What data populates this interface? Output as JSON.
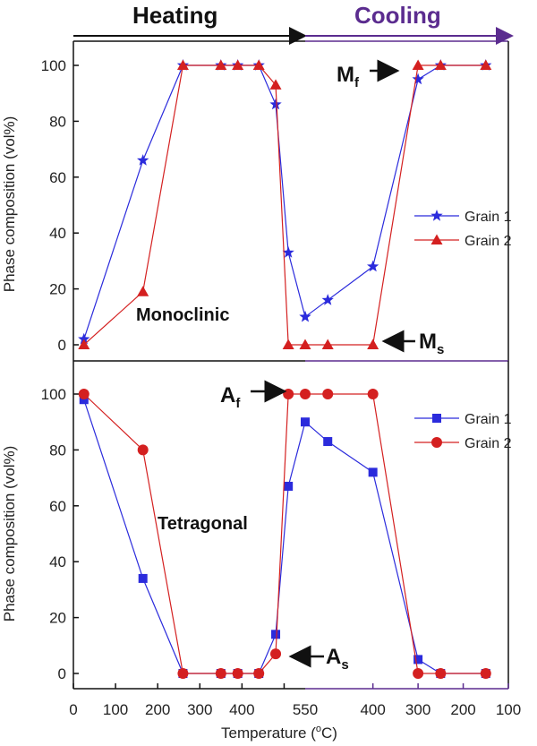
{
  "header": {
    "heating": "Heating",
    "cooling": "Cooling"
  },
  "colors": {
    "heating": "#111111",
    "cooling": "#5b2c8f",
    "grain1": "#2b2bdc",
    "grain2": "#d42020"
  },
  "x_axis": {
    "title_prefix": "Temperature (",
    "title_suffix": "C)",
    "degree": "o",
    "ticks_heating": [
      "0",
      "100",
      "200",
      "300",
      "400",
      "500"
    ],
    "tick_550": "550",
    "ticks_cooling": [
      "400",
      "300",
      "200",
      "100"
    ]
  },
  "chart_data": [
    {
      "type": "line",
      "panel": "top",
      "ylabel": "Phase composition (vol%)",
      "ylim": [
        0,
        100
      ],
      "yticks": [
        "0",
        "20",
        "40",
        "60",
        "80",
        "100"
      ],
      "phase_label": "Monoclinic",
      "x": [
        "25",
        "165",
        "260",
        "350",
        "390",
        "440",
        "480",
        "510",
        "550",
        "500",
        "400",
        "300",
        "250",
        "150"
      ],
      "series": [
        {
          "name": "Grain 1",
          "marker": "star",
          "values": [
            2,
            66,
            100,
            100,
            100,
            100,
            86,
            33,
            10,
            16,
            28,
            95,
            100,
            100
          ]
        },
        {
          "name": "Grain 2",
          "marker": "triangle",
          "values": [
            0,
            19,
            100,
            100,
            100,
            100,
            93,
            0,
            0,
            0,
            0,
            100,
            100,
            100
          ]
        }
      ],
      "annotations": [
        {
          "label": "M",
          "sub": "f"
        },
        {
          "label": "M",
          "sub": "s"
        }
      ]
    },
    {
      "type": "line",
      "panel": "bottom",
      "ylabel": "Phase composition (vol%)",
      "ylim": [
        0,
        100
      ],
      "yticks": [
        "0",
        "20",
        "40",
        "60",
        "80",
        "100"
      ],
      "phase_label": "Tetragonal",
      "x": [
        "25",
        "165",
        "260",
        "350",
        "390",
        "440",
        "480",
        "510",
        "550",
        "500",
        "400",
        "300",
        "250",
        "150"
      ],
      "series": [
        {
          "name": "Grain 1",
          "marker": "square",
          "values": [
            98,
            34,
            0,
            0,
            0,
            0,
            14,
            67,
            90,
            83,
            72,
            5,
            0,
            0
          ]
        },
        {
          "name": "Grain 2",
          "marker": "circle",
          "values": [
            100,
            80,
            0,
            0,
            0,
            0,
            7,
            100,
            100,
            100,
            100,
            0,
            0,
            0
          ]
        }
      ],
      "annotations": [
        {
          "label": "A",
          "sub": "f"
        },
        {
          "label": "A",
          "sub": "s"
        }
      ]
    }
  ]
}
